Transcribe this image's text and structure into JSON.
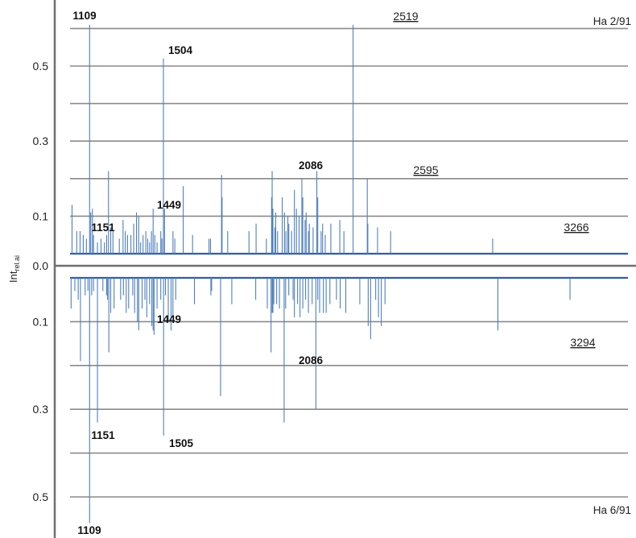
{
  "chart_data": {
    "type": "bar",
    "ylabel": "Int",
    "ylabel_sub": "rel.ai",
    "center_tick": "0.0",
    "panels": [
      {
        "name": "Ha 2/91",
        "direction": "up",
        "ylim": [
          0,
          0.6
        ],
        "tick_labels": [
          "0.5",
          "0.3",
          "0.1"
        ],
        "tick_values": [
          0.5,
          0.3,
          0.1
        ],
        "labels": [
          {
            "text": "1109",
            "x": 1109,
            "style": "bold"
          },
          {
            "text": "1504",
            "x": 1504,
            "style": "bold"
          },
          {
            "text": "1449",
            "x": 1449,
            "style": "bold"
          },
          {
            "text": "1151",
            "x": 1151,
            "style": "bold"
          },
          {
            "text": "2086",
            "x": 2086,
            "style": "bold"
          },
          {
            "text": "2519",
            "x": 2519,
            "style": "underline"
          },
          {
            "text": "2595",
            "x": 2595,
            "style": "underline"
          },
          {
            "text": "3266",
            "x": 3266,
            "style": "underline"
          }
        ],
        "peaks": [
          [
            1015,
            0.13
          ],
          [
            1040,
            0.06
          ],
          [
            1058,
            0.06
          ],
          [
            1075,
            0.05
          ],
          [
            1092,
            0.04
          ],
          [
            1109,
            0.61
          ],
          [
            1115,
            0.11
          ],
          [
            1124,
            0.12
          ],
          [
            1130,
            0.05
          ],
          [
            1151,
            0.03
          ],
          [
            1170,
            0.04
          ],
          [
            1188,
            0.03
          ],
          [
            1200,
            0.05
          ],
          [
            1210,
            0.22
          ],
          [
            1222,
            0.07
          ],
          [
            1234,
            0.06
          ],
          [
            1268,
            0.04
          ],
          [
            1288,
            0.09
          ],
          [
            1300,
            0.06
          ],
          [
            1312,
            0.05
          ],
          [
            1330,
            0.05
          ],
          [
            1345,
            0.08
          ],
          [
            1360,
            0.11
          ],
          [
            1372,
            0.1
          ],
          [
            1382,
            0.03
          ],
          [
            1395,
            0.05
          ],
          [
            1410,
            0.06
          ],
          [
            1420,
            0.04
          ],
          [
            1430,
            0.03
          ],
          [
            1440,
            0.06
          ],
          [
            1449,
            0.12
          ],
          [
            1458,
            0.05
          ],
          [
            1470,
            0.03
          ],
          [
            1490,
            0.06
          ],
          [
            1496,
            0.04
          ],
          [
            1504,
            0.52
          ],
          [
            1510,
            0.12
          ],
          [
            1555,
            0.06
          ],
          [
            1565,
            0.04
          ],
          [
            1610,
            0.18
          ],
          [
            1660,
            0.05
          ],
          [
            1748,
            0.04
          ],
          [
            1756,
            0.04
          ],
          [
            1815,
            0.21
          ],
          [
            1818,
            0.15
          ],
          [
            1848,
            0.06
          ],
          [
            1962,
            0.06
          ],
          [
            2000,
            0.08
          ],
          [
            2055,
            0.04
          ],
          [
            2083,
            0.15
          ],
          [
            2086,
            0.22
          ],
          [
            2090,
            0.12
          ],
          [
            2100,
            0.07
          ],
          [
            2105,
            0.11
          ],
          [
            2115,
            0.06
          ],
          [
            2140,
            0.15
          ],
          [
            2152,
            0.11
          ],
          [
            2160,
            0.06
          ],
          [
            2170,
            0.1
          ],
          [
            2175,
            0.08
          ],
          [
            2190,
            0.06
          ],
          [
            2205,
            0.17
          ],
          [
            2216,
            0.12
          ],
          [
            2230,
            0.1
          ],
          [
            2245,
            0.2
          ],
          [
            2250,
            0.15
          ],
          [
            2262,
            0.09
          ],
          [
            2268,
            0.11
          ],
          [
            2280,
            0.06
          ],
          [
            2285,
            0.08
          ],
          [
            2305,
            0.07
          ],
          [
            2325,
            0.22
          ],
          [
            2330,
            0.15
          ],
          [
            2348,
            0.06
          ],
          [
            2356,
            0.08
          ],
          [
            2370,
            0.05
          ],
          [
            2400,
            0.08
          ],
          [
            2448,
            0.09
          ],
          [
            2470,
            0.06
          ],
          [
            2519,
            0.61
          ],
          [
            2595,
            0.2
          ],
          [
            2598,
            0.08
          ],
          [
            2650,
            0.07
          ],
          [
            2720,
            0.06
          ],
          [
            3266,
            0.04
          ]
        ]
      },
      {
        "name": "Ha 6/91",
        "direction": "down",
        "ylim": [
          0,
          0.56
        ],
        "tick_labels": [
          "0.1",
          "0.3",
          "0.5"
        ],
        "tick_values": [
          0.1,
          0.3,
          0.5
        ],
        "labels": [
          {
            "text": "1449",
            "x": 1449,
            "style": "bold"
          },
          {
            "text": "2086",
            "x": 2086,
            "style": "bold"
          },
          {
            "text": "1151",
            "x": 1151,
            "style": "bold"
          },
          {
            "text": "1505",
            "x": 1505,
            "style": "bold"
          },
          {
            "text": "1109",
            "x": 1109,
            "style": "bold"
          },
          {
            "text": "3294",
            "x": 3294,
            "style": "underline"
          }
        ],
        "peaks": [
          [
            1010,
            0.07
          ],
          [
            1030,
            0.03
          ],
          [
            1048,
            0.05
          ],
          [
            1060,
            0.19
          ],
          [
            1085,
            0.04
          ],
          [
            1100,
            0.03
          ],
          [
            1109,
            0.56
          ],
          [
            1120,
            0.04
          ],
          [
            1130,
            0.03
          ],
          [
            1151,
            0.33
          ],
          [
            1180,
            0.03
          ],
          [
            1200,
            0.04
          ],
          [
            1205,
            0.05
          ],
          [
            1212,
            0.17
          ],
          [
            1222,
            0.08
          ],
          [
            1240,
            0.07
          ],
          [
            1275,
            0.05
          ],
          [
            1290,
            0.04
          ],
          [
            1305,
            0.08
          ],
          [
            1318,
            0.07
          ],
          [
            1340,
            0.04
          ],
          [
            1350,
            0.08
          ],
          [
            1365,
            0.1
          ],
          [
            1372,
            0.12
          ],
          [
            1390,
            0.07
          ],
          [
            1405,
            0.05
          ],
          [
            1415,
            0.09
          ],
          [
            1430,
            0.06
          ],
          [
            1442,
            0.11
          ],
          [
            1449,
            0.12
          ],
          [
            1454,
            0.13
          ],
          [
            1470,
            0.07
          ],
          [
            1490,
            0.05
          ],
          [
            1505,
            0.36
          ],
          [
            1515,
            0.04
          ],
          [
            1530,
            0.1
          ],
          [
            1545,
            0.12
          ],
          [
            1555,
            0.09
          ],
          [
            1570,
            0.05
          ],
          [
            1670,
            0.06
          ],
          [
            1758,
            0.04
          ],
          [
            1762,
            0.03
          ],
          [
            1810,
            0.27
          ],
          [
            1870,
            0.06
          ],
          [
            1998,
            0.05
          ],
          [
            2060,
            0.07
          ],
          [
            2080,
            0.17
          ],
          [
            2086,
            0.08
          ],
          [
            2090,
            0.08
          ],
          [
            2095,
            0.06
          ],
          [
            2110,
            0.06
          ],
          [
            2125,
            0.07
          ],
          [
            2150,
            0.33
          ],
          [
            2158,
            0.07
          ],
          [
            2175,
            0.04
          ],
          [
            2198,
            0.05
          ],
          [
            2205,
            0.09
          ],
          [
            2222,
            0.06
          ],
          [
            2235,
            0.09
          ],
          [
            2250,
            0.07
          ],
          [
            2265,
            0.05
          ],
          [
            2280,
            0.08
          ],
          [
            2300,
            0.06
          ],
          [
            2320,
            0.3
          ],
          [
            2330,
            0.05
          ],
          [
            2340,
            0.08
          ],
          [
            2360,
            0.08
          ],
          [
            2375,
            0.08
          ],
          [
            2395,
            0.06
          ],
          [
            2430,
            0.05
          ],
          [
            2450,
            0.07
          ],
          [
            2480,
            0.08
          ],
          [
            2555,
            0.06
          ],
          [
            2600,
            0.11
          ],
          [
            2613,
            0.14
          ],
          [
            2640,
            0.05
          ],
          [
            2655,
            0.09
          ],
          [
            2670,
            0.11
          ],
          [
            2690,
            0.06
          ],
          [
            3294,
            0.12
          ],
          [
            3680,
            0.05
          ]
        ]
      }
    ]
  }
}
